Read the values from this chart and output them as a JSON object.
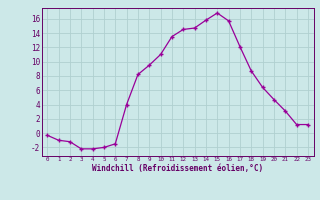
{
  "x": [
    0,
    1,
    2,
    3,
    4,
    5,
    6,
    7,
    8,
    9,
    10,
    11,
    12,
    13,
    14,
    15,
    16,
    17,
    18,
    19,
    20,
    21,
    22,
    23
  ],
  "y": [
    -0.3,
    -1.0,
    -1.2,
    -2.2,
    -2.2,
    -2.0,
    -1.5,
    4.0,
    8.2,
    9.5,
    11.0,
    13.5,
    14.5,
    14.7,
    15.8,
    16.8,
    15.7,
    12.1,
    8.7,
    6.4,
    4.7,
    3.1,
    1.2,
    1.2
  ],
  "line_color": "#990099",
  "marker": "+",
  "bg_color": "#cce8e8",
  "grid_color": "#b0d0d0",
  "xlabel": "Windchill (Refroidissement éolien,°C)",
  "xlabel_color": "#660066",
  "ylabel_ticks": [
    -2,
    0,
    2,
    4,
    6,
    8,
    10,
    12,
    14,
    16
  ],
  "xticks": [
    0,
    1,
    2,
    3,
    4,
    5,
    6,
    7,
    8,
    9,
    10,
    11,
    12,
    13,
    14,
    15,
    16,
    17,
    18,
    19,
    20,
    21,
    22,
    23
  ],
  "ylim": [
    -3.2,
    17.5
  ],
  "xlim": [
    -0.5,
    23.5
  ],
  "tick_color": "#660066",
  "spine_color": "#660066"
}
